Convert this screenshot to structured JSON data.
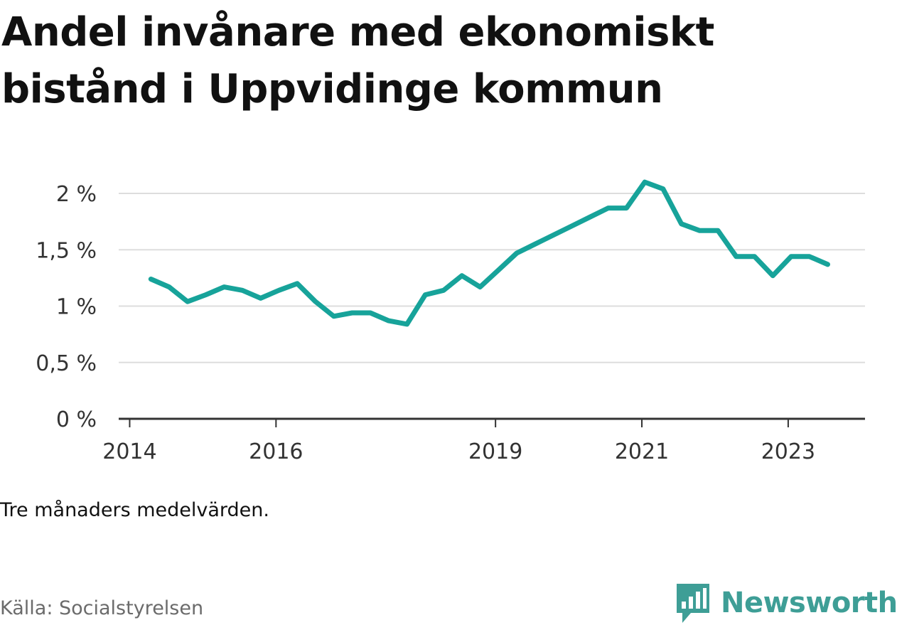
{
  "header": {
    "title": "Andel invånare med ekonomiskt bistånd i Uppvidinge kommun"
  },
  "footer": {
    "note": "Tre månaders medelvärden.",
    "source": "Källa: Socialstyrelsen",
    "brand": "Newsworthy",
    "brand_icon": "bar-chart-logo-icon"
  },
  "colors": {
    "line": "#17A39A",
    "brand": "#3E9E96",
    "grid": "#DDDDDD",
    "axis": "#333333"
  },
  "chart_data": {
    "type": "line",
    "x_tick_labels": [
      "2014",
      "2016",
      "2019",
      "2021",
      "2023"
    ],
    "x_tick_values": [
      2014.0,
      2016.0,
      2019.0,
      2021.0,
      2023.0
    ],
    "xlim": [
      2013.85,
      2024.05
    ],
    "y_tick_labels": [
      "0 %",
      "0,5 %",
      "1 %",
      "1,5 %",
      "2 %"
    ],
    "y_tick_values": [
      0,
      0.5,
      1.0,
      1.5,
      2.0
    ],
    "ylim": [
      0,
      2.0
    ],
    "grid": true,
    "series": [
      {
        "x": [
          2014.29,
          2014.54,
          2014.79,
          2015.04,
          2015.29,
          2015.54,
          2015.79,
          2016.04,
          2016.29,
          2016.54,
          2016.79,
          2017.04,
          2017.29,
          2017.54,
          2017.79,
          2018.04,
          2018.29,
          2018.54,
          2018.79,
          2019.04,
          2019.29,
          2019.54,
          2019.79,
          2020.04,
          2020.29,
          2020.54,
          2020.79,
          2021.04,
          2021.29,
          2021.54,
          2021.79,
          2022.04,
          2022.29,
          2022.54,
          2022.79,
          2023.04,
          2023.29,
          2023.54
        ],
        "y": [
          1.24,
          1.17,
          1.04,
          1.1,
          1.17,
          1.14,
          1.07,
          1.14,
          1.2,
          1.04,
          0.91,
          0.94,
          0.94,
          0.87,
          0.84,
          1.1,
          1.14,
          1.27,
          1.17,
          1.32,
          1.47,
          1.55,
          1.63,
          1.71,
          1.79,
          1.87,
          1.87,
          2.1,
          2.04,
          1.73,
          1.67,
          1.67,
          1.44,
          1.44,
          1.27,
          1.44,
          1.44,
          1.37
        ]
      }
    ]
  }
}
